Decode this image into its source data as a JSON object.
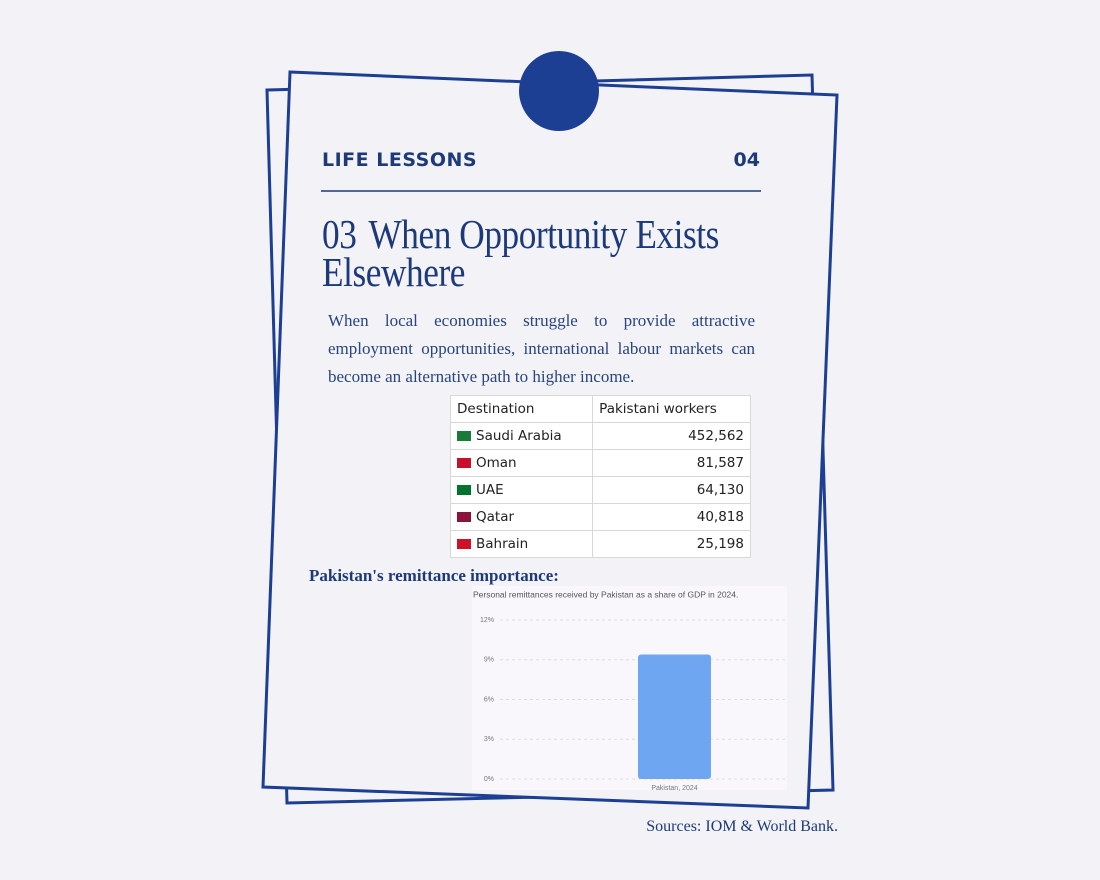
{
  "header": {
    "section": "LIFE LESSONS",
    "page": "04"
  },
  "heading": {
    "number": "03",
    "title": "When Opportunity Exists Elsewhere"
  },
  "body": "When local economies struggle to provide attractive employment opportunities, international labour markets can become an alternative path to higher income.",
  "table": {
    "columns": [
      "Destination",
      "Pakistani workers"
    ],
    "rows": [
      [
        "Saudi Arabia",
        "452,562"
      ],
      [
        "Oman",
        "81,587"
      ],
      [
        "UAE",
        "64,130"
      ],
      [
        "Qatar",
        "40,818"
      ],
      [
        "Bahrain",
        "25,198"
      ]
    ]
  },
  "chart_heading": "Pakistan's remittance importance:",
  "chart_data": {
    "type": "bar",
    "subtitle": "Personal remittances received by Pakistan as a share of GDP in 2024.",
    "categories": [
      "Pakistan, 2024"
    ],
    "values": [
      9.4
    ],
    "color": "#6fa6f2",
    "ylim": [
      0,
      12
    ],
    "yticks": [
      {
        "value": 0,
        "label": "0%"
      },
      {
        "value": 3,
        "label": "3%"
      },
      {
        "value": 6,
        "label": "6%"
      },
      {
        "value": 9,
        "label": "9%"
      },
      {
        "value": 12,
        "label": "12%"
      }
    ],
    "grid": true
  },
  "sources": "Sources: IOM & World Bank."
}
